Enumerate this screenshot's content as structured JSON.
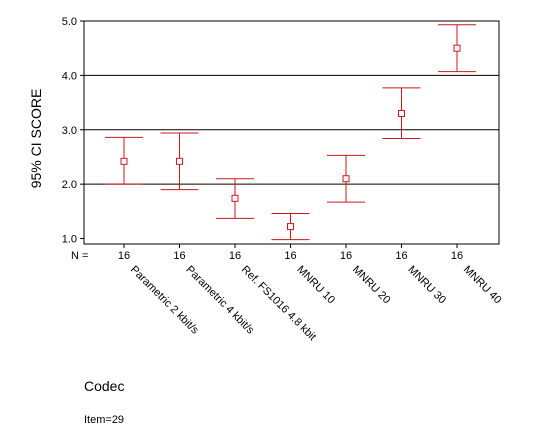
{
  "chart_data": {
    "type": "errorbar",
    "ylabel": "95% CI SCORE",
    "xlabel": "Codec",
    "ylim": [
      0.9,
      5.0
    ],
    "yticks": [
      "1.0",
      "2.0",
      "3.0",
      "4.0",
      "5.0"
    ],
    "grid": "horizontal at 2.0, 3.0, 4.0",
    "n_label": "N =",
    "categories": [
      "Parametric 2 kbit/s",
      "Parametric 4 kbit/s",
      "Ref. FS1016 4.8 kbit",
      "MNRU 10",
      "MNRU 20",
      "MNRU 30",
      "MNRU 40"
    ],
    "n": [
      "16",
      "16",
      "16",
      "16",
      "16",
      "16",
      "16"
    ],
    "series": [
      {
        "mean": [
          2.42,
          2.42,
          1.74,
          1.22,
          2.1,
          3.3,
          4.5
        ],
        "lower": [
          2.0,
          1.9,
          1.37,
          0.98,
          1.67,
          2.84,
          4.07
        ],
        "upper": [
          2.86,
          2.94,
          2.1,
          1.46,
          2.53,
          3.77,
          4.93
        ]
      }
    ],
    "colors": {
      "series": "#c8191e",
      "grid": "#000000",
      "axis": "#000000"
    },
    "note": "Item=29"
  }
}
